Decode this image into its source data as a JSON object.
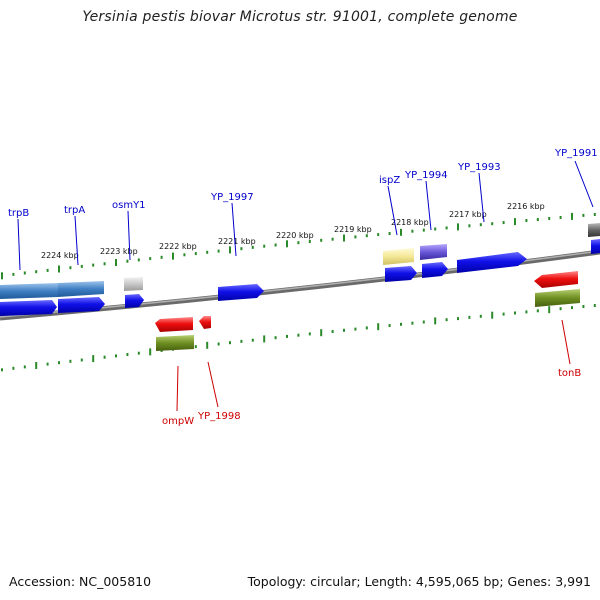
{
  "title": "Yersinia pestis biovar Microtus str. 91001, complete genome",
  "footer": {
    "accession": "Accession: NC_005810",
    "summary": "Topology: circular; Length: 4,595,065 bp; Genes: 3,991"
  },
  "colors": {
    "forward_gene": "#1010e8",
    "reverse_gene": "#ee1010",
    "backbone": "#808080",
    "tick": "#2a8a2a",
    "forward_label": "#0000cc",
    "reverse_label": "#cc0000"
  },
  "kbp_ticks": [
    "2224 kbp",
    "2223 kbp",
    "2222 kbp",
    "2221 kbp",
    "2220 kbp",
    "2219 kbp",
    "2218 kbp",
    "2217 kbp",
    "2216 kbp"
  ],
  "forward_labels": [
    "trpB",
    "trpA",
    "osmY1",
    "YP_1997",
    "ispZ",
    "YP_1994",
    "YP_1993",
    "YP_1991"
  ],
  "reverse_labels": [
    "ompW",
    "YP_1998",
    "tonB"
  ]
}
